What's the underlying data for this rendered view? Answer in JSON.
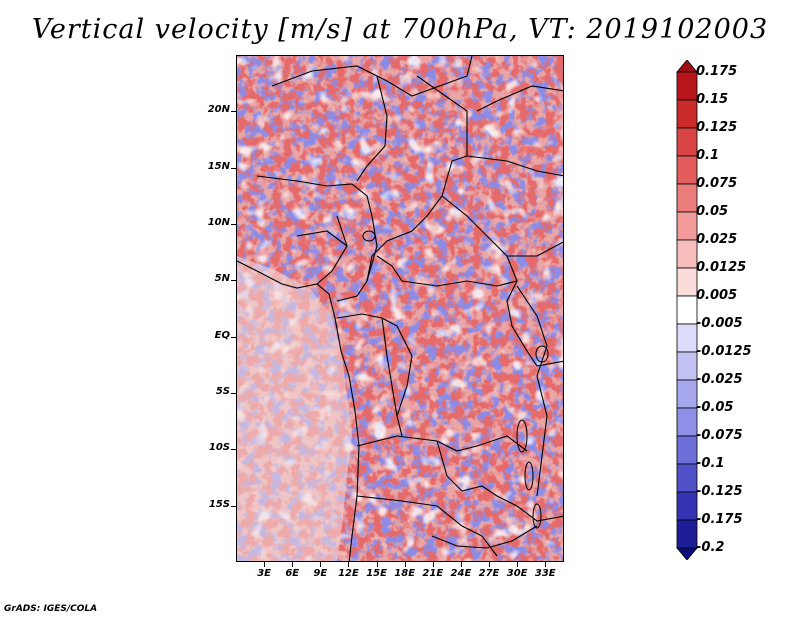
{
  "title": "Vertical velocity [m/s] at 700hPa, VT: 2019102003",
  "footer": "GrADS: IGES/COLA",
  "map": {
    "variable": "Vertical velocity",
    "level": "700hPa",
    "valid_time": "2019102003",
    "units": "m/s",
    "lat_labels": [
      "20N",
      "15N",
      "10N",
      "5N",
      "EQ",
      "5S",
      "10S",
      "15S"
    ],
    "lat_values": [
      20,
      15,
      10,
      5,
      0,
      -5,
      -10,
      -15
    ],
    "lon_labels": [
      "3E",
      "6E",
      "9E",
      "12E",
      "15E",
      "18E",
      "21E",
      "24E",
      "27E",
      "30E",
      "33E"
    ],
    "lon_values": [
      3,
      6,
      9,
      12,
      15,
      18,
      21,
      24,
      27,
      30,
      33
    ],
    "lon_range": [
      0,
      35
    ],
    "lat_range": [
      -20,
      25
    ]
  },
  "colorbar": {
    "labels": [
      "0.175",
      "0.15",
      "0.125",
      "0.1",
      "0.075",
      "0.05",
      "0.025",
      "0.0125",
      "0.005",
      "-0.005",
      "-0.0125",
      "-0.025",
      "-0.05",
      "-0.075",
      "-0.1",
      "-0.125",
      "-0.175",
      "-0.2"
    ],
    "colors": [
      "#9e0e14",
      "#b8161d",
      "#c92a2a",
      "#d94444",
      "#e45d5d",
      "#ec7d7d",
      "#f29b9b",
      "#f7bcbc",
      "#fbdada",
      "#ffffff",
      "#dcdcfa",
      "#c3c3f3",
      "#a7a7ee",
      "#8f8fe6",
      "#6e6ed8",
      "#5252c8",
      "#3434b2",
      "#1e1e96",
      "#0d0d7a"
    ]
  }
}
